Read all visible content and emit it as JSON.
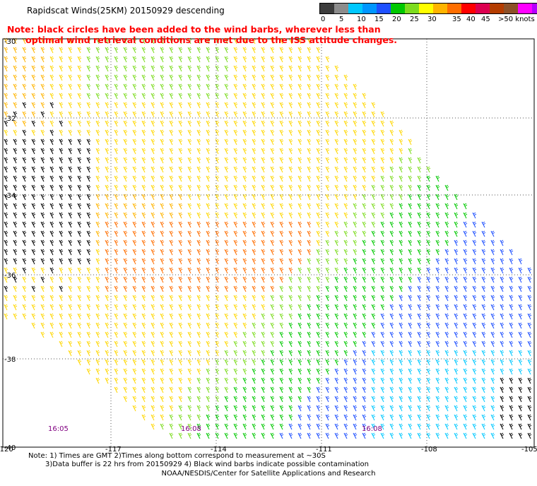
{
  "title": "Rapidscat Winds(25KM) 20150929 descending",
  "note": {
    "line1": "Note: black circles have been added to the wind barbs, wherever less than",
    "line2": "      optimal wind retrieval conditions are met due to the ISS attitude changes."
  },
  "legend": {
    "colors": [
      "#3c3c3c",
      "#8c8c8c",
      "#00c8ff",
      "#0096ff",
      "#1e50ff",
      "#00c800",
      "#7ddc1e",
      "#ffff00",
      "#ffb400",
      "#ff6e00",
      "#ff0000",
      "#dc0050",
      "#b43c00",
      "#8c5028",
      "#ff00ff",
      "#b400ff",
      "#500096"
    ],
    "labels": [
      "0",
      "5",
      "10",
      "15",
      "20",
      "25",
      "30",
      "35",
      "40",
      "45",
      ">50 knots"
    ]
  },
  "map": {
    "lon_labels": [
      "-120",
      "-117",
      "-114",
      "-111",
      "-108",
      "-105"
    ],
    "lat_labels": [
      "-30",
      "-32",
      "-34",
      "-36",
      "-38",
      "-40"
    ],
    "time_labels": [
      "16:05",
      "16:08",
      "16:08"
    ]
  },
  "footer": {
    "line1": "Note: 1) Times are GMT 2)Times along bottom correspond to measurement at ~30S",
    "line2": "3)Data buffer is 22 hrs from 20150929 4) Black wind barbs indicate possible contamination",
    "line3": "NOAA/NESDIS/Center for Satellite Applications and Research"
  }
}
